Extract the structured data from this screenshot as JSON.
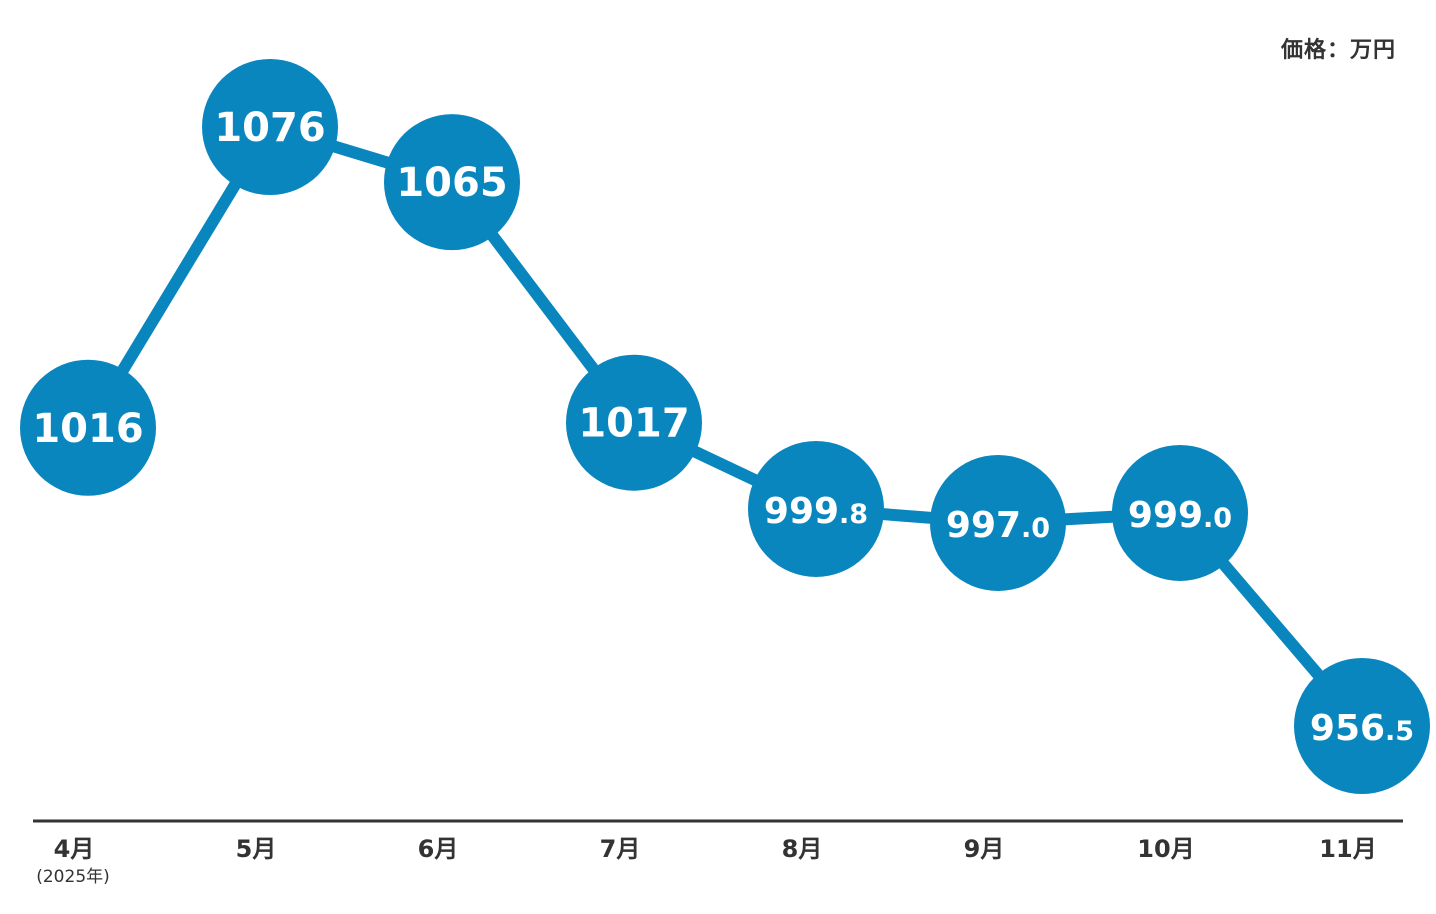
{
  "unit_label": "価格：万円",
  "chart_data": {
    "type": "line",
    "categories": [
      "4月",
      "5月",
      "6月",
      "7月",
      "8月",
      "9月",
      "10月",
      "11月"
    ],
    "first_category_note": "(2025年)",
    "values": [
      1016,
      1076,
      1065,
      1017,
      999.8,
      997.0,
      999.0,
      956.5
    ],
    "point_labels": [
      {
        "main": "1016",
        "decimal": ""
      },
      {
        "main": "1076",
        "decimal": ""
      },
      {
        "main": "1065",
        "decimal": ""
      },
      {
        "main": "1017",
        "decimal": ""
      },
      {
        "main": "999",
        "decimal": ".8"
      },
      {
        "main": "997",
        "decimal": ".0"
      },
      {
        "main": "999",
        "decimal": ".0"
      },
      {
        "main": "956",
        "decimal": ".5"
      }
    ],
    "color": "#0a86bf",
    "axis_color": "#333333",
    "grid": false
  }
}
